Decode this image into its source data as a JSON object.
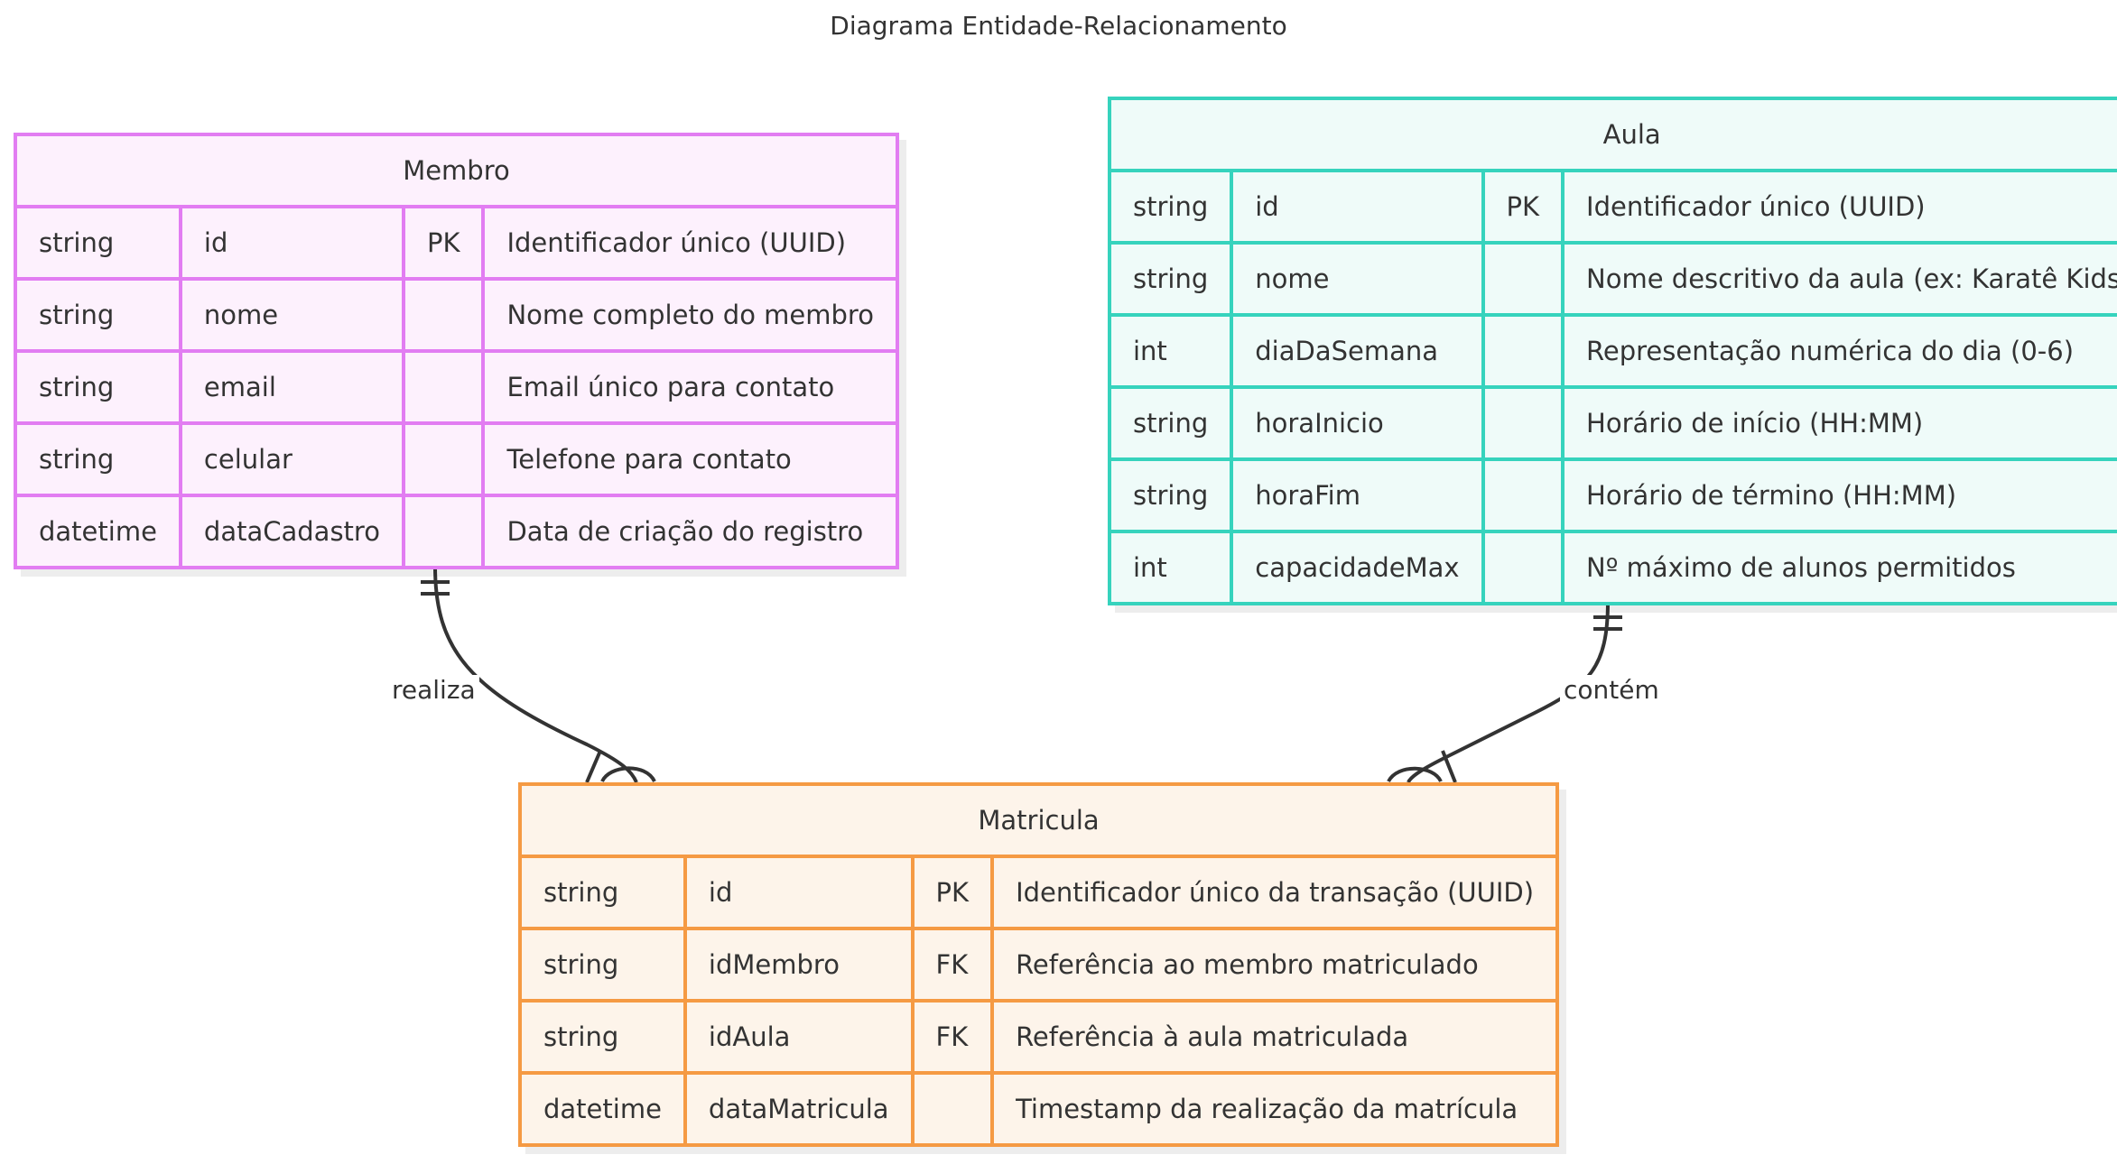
{
  "title": "Diagrama Entidade-Relacionamento",
  "entities": {
    "membro": {
      "name": "Membro",
      "color": "#e27df2",
      "fill": "#fdf1fd",
      "attributes": [
        {
          "type": "string",
          "name": "id",
          "key": "PK",
          "comment": "Identificador único (UUID)"
        },
        {
          "type": "string",
          "name": "nome",
          "key": "",
          "comment": "Nome completo do membro"
        },
        {
          "type": "string",
          "name": "email",
          "key": "",
          "comment": "Email único para contato"
        },
        {
          "type": "string",
          "name": "celular",
          "key": "",
          "comment": "Telefone para contato"
        },
        {
          "type": "datetime",
          "name": "dataCadastro",
          "key": "",
          "comment": "Data de criação do registro"
        }
      ]
    },
    "aula": {
      "name": "Aula",
      "color": "#36d3bd",
      "fill": "#effbf9",
      "attributes": [
        {
          "type": "string",
          "name": "id",
          "key": "PK",
          "comment": "Identificador único (UUID)"
        },
        {
          "type": "string",
          "name": "nome",
          "key": "",
          "comment": "Nome descritivo da aula (ex: Karatê Kids)"
        },
        {
          "type": "int",
          "name": "diaDaSemana",
          "key": "",
          "comment": "Representação numérica do dia (0-6)"
        },
        {
          "type": "string",
          "name": "horaInicio",
          "key": "",
          "comment": "Horário de início (HH:MM)"
        },
        {
          "type": "string",
          "name": "horaFim",
          "key": "",
          "comment": "Horário de término (HH:MM)"
        },
        {
          "type": "int",
          "name": "capacidadeMax",
          "key": "",
          "comment": "Nº máximo de alunos permitidos"
        }
      ]
    },
    "matricula": {
      "name": "Matricula",
      "color": "#f59a43",
      "fill": "#fdf4ea",
      "attributes": [
        {
          "type": "string",
          "name": "id",
          "key": "PK",
          "comment": "Identificador único da transação (UUID)"
        },
        {
          "type": "string",
          "name": "idMembro",
          "key": "FK",
          "comment": "Referência ao membro matriculado"
        },
        {
          "type": "string",
          "name": "idAula",
          "key": "FK",
          "comment": "Referência à aula matriculada"
        },
        {
          "type": "datetime",
          "name": "dataMatricula",
          "key": "",
          "comment": "Timestamp da realização da matrícula"
        }
      ]
    }
  },
  "relationships": [
    {
      "from": "Membro",
      "to": "Matricula",
      "label": "realiza",
      "from_cardinality": "exactly one",
      "to_cardinality": "zero or more"
    },
    {
      "from": "Aula",
      "to": "Matricula",
      "label": "contém",
      "from_cardinality": "exactly one",
      "to_cardinality": "zero or more"
    }
  ]
}
